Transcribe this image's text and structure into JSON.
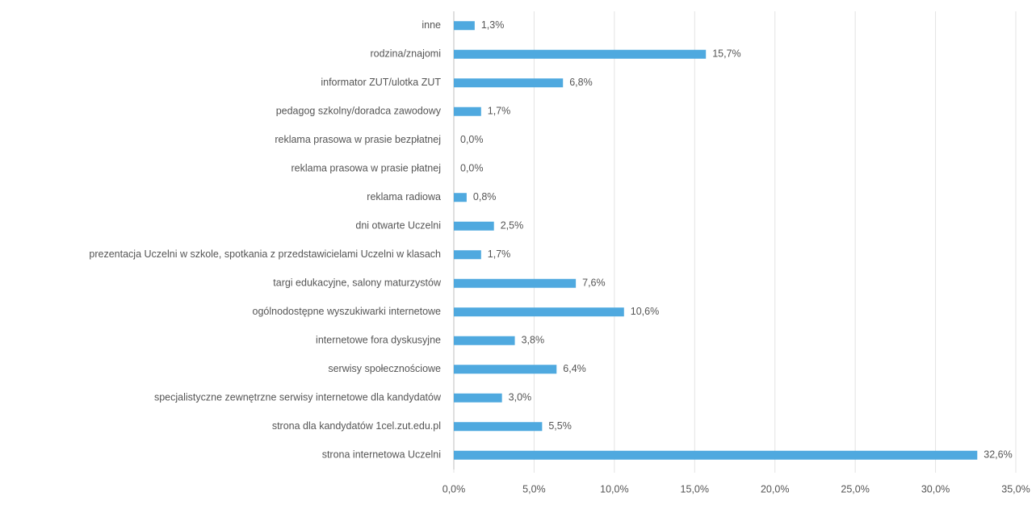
{
  "chart_data": {
    "type": "bar",
    "orientation": "horizontal",
    "categories": [
      "inne",
      "rodzina/znajomi",
      "informator ZUT/ulotka ZUT",
      "pedagog szkolny/doradca zawodowy",
      "reklama prasowa w prasie bezpłatnej",
      "reklama prasowa w prasie płatnej",
      "reklama radiowa",
      "dni otwarte Uczelni",
      "prezentacja Uczelni w szkole, spotkania z przedstawicielami Uczelni w klasach",
      "targi edukacyjne, salony maturzystów",
      "ogólnodostępne wyszukiwarki internetowe",
      "internetowe fora dyskusyjne",
      "serwisy społecznościowe",
      "specjalistyczne zewnętrzne serwisy internetowe dla kandydatów",
      "strona dla kandydatów 1cel.zut.edu.pl",
      "strona internetowa Uczelni"
    ],
    "values": [
      1.3,
      15.7,
      6.8,
      1.7,
      0.0,
      0.0,
      0.8,
      2.5,
      1.7,
      7.6,
      10.6,
      3.8,
      6.4,
      3.0,
      5.5,
      32.6
    ],
    "value_labels": [
      "1,3%",
      "15,7%",
      "6,8%",
      "1,7%",
      "0,0%",
      "0,0%",
      "0,8%",
      "2,5%",
      "1,7%",
      "7,6%",
      "10,6%",
      "3,8%",
      "6,4%",
      "3,0%",
      "5,5%",
      "32,6%"
    ],
    "color": "#4fa9df",
    "xlim": [
      0,
      35
    ],
    "xticks": [
      {
        "value": 0,
        "label": "0,0%"
      },
      {
        "value": 5,
        "label": "5,0%"
      },
      {
        "value": 10,
        "label": "10,0%"
      },
      {
        "value": 15,
        "label": "15,0%"
      },
      {
        "value": 20,
        "label": "20,0%"
      },
      {
        "value": 25,
        "label": "25,0%"
      },
      {
        "value": 30,
        "label": "30,0%"
      },
      {
        "value": 35,
        "label": "35,0%"
      }
    ],
    "grid": true
  }
}
